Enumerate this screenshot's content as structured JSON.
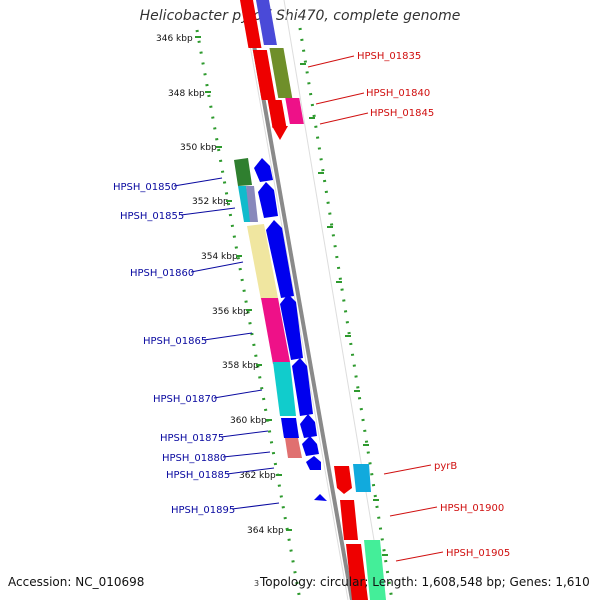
{
  "title": "Helicobacter pylori Shi470, complete genome",
  "footer": {
    "accession_label": "Accession:",
    "accession": "NC_010698",
    "topology_label": "Topology:",
    "topology": "circular;",
    "length_label": "Length:",
    "length": "1,608,548 bp;",
    "genes_label": "Genes:",
    "genes": "1,610"
  },
  "scale_ticks": [
    "346 kbp",
    "348 kbp",
    "350 kbp",
    "352 kbp",
    "354 kbp",
    "356 kbp",
    "358 kbp",
    "360 kbp",
    "362 kbp",
    "364 kbp"
  ],
  "gene_labels_left": [
    "HPSH_01850",
    "HPSH_01855",
    "HPSH_01860",
    "HPSH_01865",
    "HPSH_01870",
    "HPSH_01875",
    "HPSH_01880",
    "HPSH_01885",
    "HPSH_01895"
  ],
  "gene_labels_right": [
    "HPSH_01835",
    "HPSH_01840",
    "HPSH_01845",
    "pyrB",
    "HPSH_01900",
    "HPSH_01905"
  ],
  "colors": {
    "backbone": "#8a8a8a",
    "dots": "#2e9a2e",
    "left_label": "#0a0aa0",
    "right_label": "#d01010",
    "forward_gene": "#0000ee",
    "reverse_gene": "#ee0000"
  },
  "stray_label": "3"
}
